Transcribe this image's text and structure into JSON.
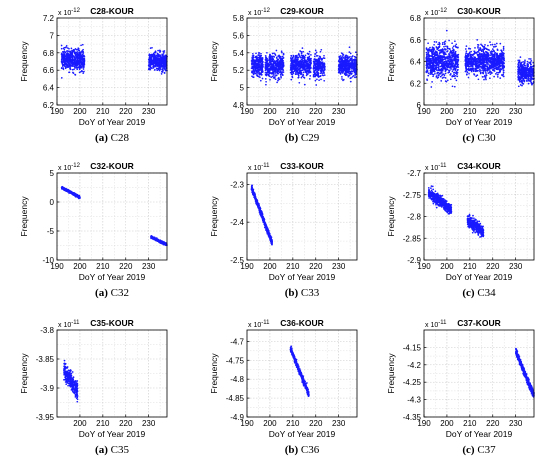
{
  "figure": {
    "colors": {
      "series": "#1a1aff",
      "axis": "#000000",
      "grid": "#c8c8c8"
    },
    "panels": [
      {
        "caption_letter": "(a)",
        "caption_text": "C28"
      },
      {
        "caption_letter": "(b)",
        "caption_text": "C29"
      },
      {
        "caption_letter": "(c)",
        "caption_text": "C30"
      },
      {
        "caption_letter": "(a)",
        "caption_text": "C32"
      },
      {
        "caption_letter": "(b)",
        "caption_text": "C33"
      },
      {
        "caption_letter": "(c)",
        "caption_text": "C34"
      },
      {
        "caption_letter": "(a)",
        "caption_text": "C35"
      },
      {
        "caption_letter": "(b)",
        "caption_text": "C36"
      },
      {
        "caption_letter": "(c)",
        "caption_text": "C37"
      }
    ]
  },
  "chart_data": [
    {
      "type": "scatter",
      "title": "C28-KOUR",
      "xlabel": "DoY of Year 2019",
      "ylabel": "Frequency",
      "exponent": "x 10^-12",
      "xlim": [
        190,
        238
      ],
      "ylim": [
        6.2,
        7.2
      ],
      "xticks": [
        190,
        200,
        210,
        220,
        230
      ],
      "yticks": [
        6.2,
        6.4,
        6.6,
        6.8,
        7.0,
        7.2
      ],
      "ytick_labels": [
        "6.2",
        "6.4",
        "6.6",
        "6.8",
        "7",
        "7.2"
      ],
      "series": [
        {
          "segments": [
            {
              "x": [
                192,
                202
              ],
              "y": [
                6.72,
                6.72
              ],
              "spread": 0.12
            },
            {
              "x": [
                230,
                238
              ],
              "y": [
                6.7,
                6.7
              ],
              "spread": 0.1
            }
          ]
        }
      ]
    },
    {
      "type": "scatter",
      "title": "C29-KOUR",
      "xlabel": "DoY of Year 2019",
      "ylabel": "Frequency",
      "exponent": "x 10^-12",
      "xlim": [
        190,
        238
      ],
      "ylim": [
        4.8,
        5.8
      ],
      "xticks": [
        190,
        200,
        210,
        220,
        230
      ],
      "yticks": [
        4.8,
        5.0,
        5.2,
        5.4,
        5.6,
        5.8
      ],
      "ytick_labels": [
        "4.8",
        "5",
        "5.2",
        "5.4",
        "5.6",
        "5.8"
      ],
      "series": [
        {
          "segments": [
            {
              "x": [
                192,
                197
              ],
              "y": [
                5.25,
                5.25
              ],
              "spread": 0.13
            },
            {
              "x": [
                198,
                206
              ],
              "y": [
                5.25,
                5.25
              ],
              "spread": 0.13
            },
            {
              "x": [
                209,
                218
              ],
              "y": [
                5.25,
                5.25
              ],
              "spread": 0.13
            },
            {
              "x": [
                219,
                224
              ],
              "y": [
                5.25,
                5.25
              ],
              "spread": 0.13
            },
            {
              "x": [
                230,
                238
              ],
              "y": [
                5.25,
                5.25
              ],
              "spread": 0.12
            }
          ]
        }
      ]
    },
    {
      "type": "scatter",
      "title": "C30-KOUR",
      "xlabel": "DoY of Year 2019",
      "ylabel": "Frequency",
      "exponent": "x 10^-12",
      "xlim": [
        190,
        238
      ],
      "ylim": [
        6.0,
        6.8
      ],
      "xticks": [
        190,
        200,
        210,
        220,
        230
      ],
      "yticks": [
        6.0,
        6.2,
        6.4,
        6.6,
        6.8
      ],
      "ytick_labels": [
        "6",
        "6.2",
        "6.4",
        "6.6",
        "6.8"
      ],
      "series": [
        {
          "segments": [
            {
              "x": [
                191,
                205
              ],
              "y": [
                6.4,
                6.4
              ],
              "spread": 0.15
            },
            {
              "x": [
                208,
                225
              ],
              "y": [
                6.4,
                6.4
              ],
              "spread": 0.12
            },
            {
              "x": [
                231,
                238
              ],
              "y": [
                6.3,
                6.3
              ],
              "spread": 0.1
            }
          ]
        }
      ]
    },
    {
      "type": "scatter",
      "title": "C32-KOUR",
      "xlabel": "DoY of Year 2019",
      "ylabel": "Frequency",
      "exponent": "x 10^-12",
      "xlim": [
        190,
        238
      ],
      "ylim": [
        -10,
        5
      ],
      "xticks": [
        190,
        200,
        210,
        220,
        230
      ],
      "yticks": [
        -10,
        -5,
        0,
        5
      ],
      "ytick_labels": [
        "-10",
        "-5",
        "0",
        "5"
      ],
      "series": [
        {
          "segments": [
            {
              "x": [
                192,
                200
              ],
              "y": [
                2.5,
                0.8
              ],
              "spread": 0.2
            },
            {
              "x": [
                231,
                238
              ],
              "y": [
                -6.0,
                -7.4
              ],
              "spread": 0.2
            }
          ]
        }
      ]
    },
    {
      "type": "scatter",
      "title": "C33-KOUR",
      "xlabel": "DoY of Year 2019",
      "ylabel": "Frequency",
      "exponent": "x 10^-11",
      "xlim": [
        190,
        238
      ],
      "ylim": [
        -2.5,
        -2.27
      ],
      "xticks": [
        190,
        200,
        210,
        220,
        230
      ],
      "yticks": [
        -2.5,
        -2.4,
        -2.3
      ],
      "ytick_labels": [
        "-2.5",
        "-2.4",
        "-2.3"
      ],
      "series": [
        {
          "segments": [
            {
              "x": [
                192,
                201
              ],
              "y": [
                -2.31,
                -2.455
              ],
              "spread": 0.008
            }
          ]
        }
      ]
    },
    {
      "type": "scatter",
      "title": "C34-KOUR",
      "xlabel": "DoY of Year 2019",
      "ylabel": "Frequency",
      "exponent": "x 10^-11",
      "xlim": [
        190,
        238
      ],
      "ylim": [
        -2.9,
        -2.7
      ],
      "xticks": [
        190,
        200,
        210,
        220,
        230
      ],
      "yticks": [
        -2.9,
        -2.85,
        -2.8,
        -2.75,
        -2.7
      ],
      "ytick_labels": [
        "-2.9",
        "-2.85",
        "-2.8",
        "-2.75",
        "-2.7"
      ],
      "series": [
        {
          "segments": [
            {
              "x": [
                192,
                202
              ],
              "y": [
                -2.745,
                -2.785
              ],
              "spread": 0.012
            },
            {
              "x": [
                209,
                216
              ],
              "y": [
                -2.81,
                -2.835
              ],
              "spread": 0.013
            }
          ]
        }
      ]
    },
    {
      "type": "scatter",
      "title": "C35-KOUR",
      "xlabel": "DoY of Year 2019",
      "ylabel": "Frequency",
      "exponent": "x 10^-11",
      "xlim": [
        190,
        238
      ],
      "ylim": [
        -3.95,
        -3.8
      ],
      "xticks": [
        200,
        210,
        220,
        230
      ],
      "yticks": [
        -3.95,
        -3.9,
        -3.85,
        -3.8
      ],
      "ytick_labels": [
        "-3.95",
        "-3.9",
        "-3.85",
        "-3.8"
      ],
      "series": [
        {
          "segments": [
            {
              "x": [
                193,
                199
              ],
              "y": [
                -3.87,
                -3.905
              ],
              "spread": 0.014
            }
          ]
        }
      ]
    },
    {
      "type": "scatter",
      "title": "C36-KOUR",
      "xlabel": "DoY of Year 2019",
      "ylabel": "Frequency",
      "exponent": "x 10^-11",
      "xlim": [
        190,
        238
      ],
      "ylim": [
        -4.9,
        -4.67
      ],
      "xticks": [
        190,
        200,
        210,
        220,
        230
      ],
      "yticks": [
        -4.9,
        -4.85,
        -4.8,
        -4.75,
        -4.7
      ],
      "ytick_labels": [
        "-4.9",
        "-4.85",
        "-4.8",
        "-4.75",
        "-4.7"
      ],
      "series": [
        {
          "segments": [
            {
              "x": [
                209,
                217
              ],
              "y": [
                -4.72,
                -4.84
              ],
              "spread": 0.008
            }
          ]
        }
      ]
    },
    {
      "type": "scatter",
      "title": "C37-KOUR",
      "xlabel": "DoY of Year 2019",
      "ylabel": "Frequency",
      "exponent": "x 10^-11",
      "xlim": [
        190,
        238
      ],
      "ylim": [
        -4.35,
        -4.1
      ],
      "xticks": [
        190,
        200,
        210,
        220,
        230
      ],
      "yticks": [
        -4.35,
        -4.3,
        -4.25,
        -4.2,
        -4.15
      ],
      "ytick_labels": [
        "-4.35",
        "-4.3",
        "-4.25",
        "-4.2",
        "-4.15"
      ],
      "series": [
        {
          "segments": [
            {
              "x": [
                230,
                238
              ],
              "y": [
                -4.16,
                -4.29
              ],
              "spread": 0.01
            }
          ]
        }
      ]
    }
  ]
}
